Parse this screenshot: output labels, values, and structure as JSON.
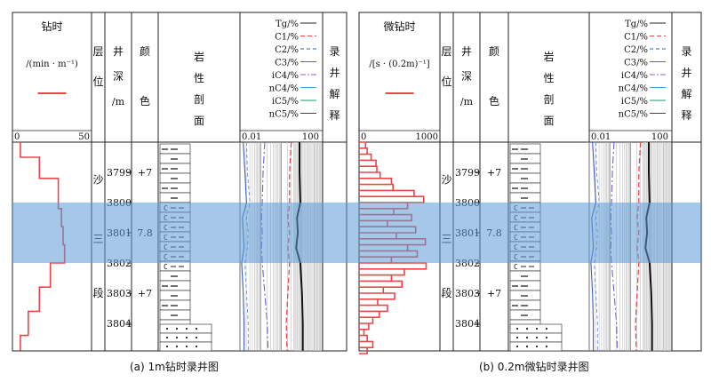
{
  "colors": {
    "drill": "#e8474a",
    "band": "#5b9bd5",
    "grid": "#b0b0b0"
  },
  "panels": [
    {
      "caption": "(a) 1m钻时录井图",
      "drill_title": "钻时",
      "drill_unit": "/(min · m⁻¹)",
      "scale": {
        "min": "0",
        "max": "50"
      },
      "layer_title": [
        "层",
        "位"
      ],
      "depth_title": [
        "井",
        "深",
        "/m"
      ],
      "color_title": [
        "颜",
        "色"
      ],
      "litho_title": [
        "岩",
        "性",
        "剖",
        "面"
      ],
      "interp_title": [
        "录",
        "井",
        "解",
        "释"
      ],
      "gas_scale": {
        "min": "0.01",
        "max": "100"
      },
      "legend": [
        "Tg/%",
        "C1/%",
        "C2/%",
        "C3/%",
        "iC4/%",
        "nC4/%",
        "iC5/%",
        "nC5/%"
      ],
      "formation": [
        "沙",
        "三",
        "段"
      ],
      "depths": [
        "3799",
        "3800",
        "3801",
        "3802",
        "3803",
        "3804"
      ],
      "colors_col": [
        "+7",
        "7.8",
        "+7"
      ],
      "drill_profile": [
        {
          "depth": 3798.0,
          "value": 5
        },
        {
          "depth": 3798.5,
          "value": 5
        },
        {
          "depth": 3798.5,
          "value": 17
        },
        {
          "depth": 3799.2,
          "value": 17
        },
        {
          "depth": 3799.2,
          "value": 29
        },
        {
          "depth": 3800.2,
          "value": 29
        },
        {
          "depth": 3800.2,
          "value": 31
        },
        {
          "depth": 3800.8,
          "value": 31
        },
        {
          "depth": 3800.8,
          "value": 32
        },
        {
          "depth": 3801.4,
          "value": 32
        },
        {
          "depth": 3801.4,
          "value": 33
        },
        {
          "depth": 3802.0,
          "value": 33
        },
        {
          "depth": 3802.0,
          "value": 24
        },
        {
          "depth": 3802.8,
          "value": 24
        },
        {
          "depth": 3802.8,
          "value": 17
        },
        {
          "depth": 3803.6,
          "value": 17
        },
        {
          "depth": 3803.6,
          "value": 10
        },
        {
          "depth": 3804.4,
          "value": 10
        },
        {
          "depth": 3804.4,
          "value": 5
        },
        {
          "depth": 3804.9,
          "value": 5
        }
      ]
    },
    {
      "caption": "(b) 0.2m微钻时录井图",
      "drill_title": "微钻时",
      "drill_unit": "/[s · (0.2m)⁻¹]",
      "scale": {
        "min": "0",
        "max": "1000"
      },
      "layer_title": [
        "层",
        "位"
      ],
      "depth_title": [
        "井",
        "深",
        "/m"
      ],
      "color_title": [
        "颜",
        "色"
      ],
      "litho_title": [
        "岩",
        "性",
        "剖",
        "面"
      ],
      "interp_title": [
        "录",
        "井",
        "解",
        "释"
      ],
      "gas_scale": {
        "min": "0.01",
        "max": "100"
      },
      "legend": [
        "Tg/%",
        "C1/%",
        "C2/%",
        "C3/%",
        "iC4/%",
        "nC4/%",
        "iC5/%",
        "nC5/%"
      ],
      "formation": [
        "沙",
        "三",
        "段"
      ],
      "depths": [
        "3799",
        "3800",
        "3801",
        "3802",
        "3803",
        "3804"
      ],
      "colors_col": [
        "+7",
        "7.8",
        "+7"
      ],
      "drill_profile": [
        {
          "depth": 3798.0,
          "value": 80
        },
        {
          "depth": 3798.2,
          "value": 100
        },
        {
          "depth": 3798.4,
          "value": 150
        },
        {
          "depth": 3798.6,
          "value": 210
        },
        {
          "depth": 3798.8,
          "value": 220
        },
        {
          "depth": 3799.0,
          "value": 260
        },
        {
          "depth": 3799.2,
          "value": 400
        },
        {
          "depth": 3799.4,
          "value": 420
        },
        {
          "depth": 3799.6,
          "value": 680
        },
        {
          "depth": 3799.8,
          "value": 800
        },
        {
          "depth": 3800.0,
          "value": 600
        },
        {
          "depth": 3800.2,
          "value": 430
        },
        {
          "depth": 3800.4,
          "value": 650
        },
        {
          "depth": 3800.6,
          "value": 350
        },
        {
          "depth": 3800.8,
          "value": 700
        },
        {
          "depth": 3801.0,
          "value": 460
        },
        {
          "depth": 3801.2,
          "value": 820
        },
        {
          "depth": 3801.4,
          "value": 600
        },
        {
          "depth": 3801.6,
          "value": 720
        },
        {
          "depth": 3801.8,
          "value": 400
        },
        {
          "depth": 3802.0,
          "value": 830
        },
        {
          "depth": 3802.2,
          "value": 560
        },
        {
          "depth": 3802.4,
          "value": 400
        },
        {
          "depth": 3802.6,
          "value": 530
        },
        {
          "depth": 3802.8,
          "value": 300
        },
        {
          "depth": 3803.0,
          "value": 440
        },
        {
          "depth": 3803.2,
          "value": 230
        },
        {
          "depth": 3803.4,
          "value": 350
        },
        {
          "depth": 3803.6,
          "value": 250
        },
        {
          "depth": 3803.8,
          "value": 170
        },
        {
          "depth": 3804.0,
          "value": 120
        },
        {
          "depth": 3804.2,
          "value": 60
        },
        {
          "depth": 3804.4,
          "value": 100
        },
        {
          "depth": 3804.6,
          "value": 170
        },
        {
          "depth": 3804.8,
          "value": 100
        }
      ]
    }
  ]
}
